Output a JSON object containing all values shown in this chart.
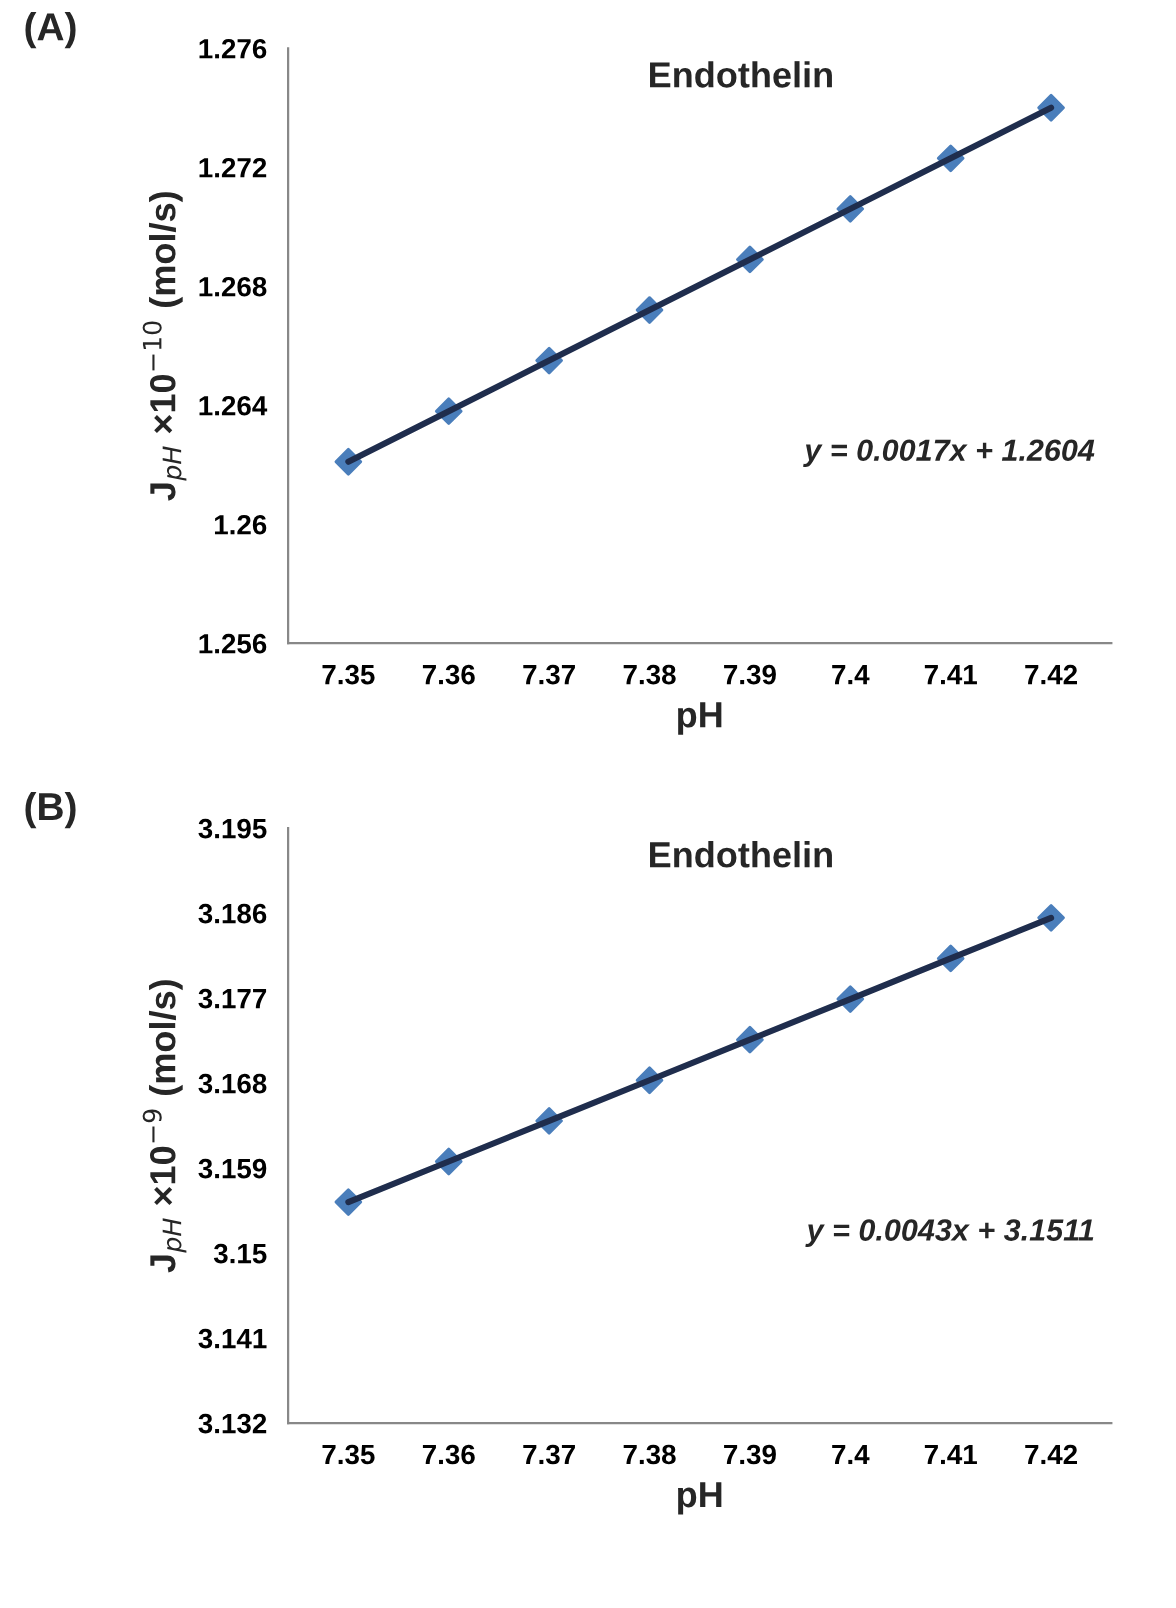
{
  "chart_data": [
    {
      "type": "line",
      "title": "(A)",
      "xlabel": "pH",
      "ylabel": "J$_{pH}$ ×10$^{−10}$ (mol/s)",
      "categories": [
        "7.35",
        "7.36",
        "7.37",
        "7.38",
        "7.39",
        "7.4",
        "7.41",
        "7.42"
      ],
      "series": [
        {
          "type": "scatter",
          "color": "#4a7ebb",
          "marker": "diamond",
          "values": [
            1.2621,
            1.2638,
            1.2655,
            1.2672,
            1.2689,
            1.2706,
            1.2723,
            1.274
          ]
        },
        {
          "color": "#1f2d4d",
          "values": [
            1.2621,
            1.2638,
            1.2655,
            1.2672,
            1.2689,
            1.2706,
            1.2723,
            1.274
          ]
        }
      ],
      "ylim": [
        1.256,
        1.276
      ],
      "yticks": [
        1.256,
        1.26,
        1.264,
        1.268,
        1.272,
        1.276
      ],
      "grid": false,
      "legend": false,
      "annotations": [
        "Endothelin",
        "y = 0.0017x + 1.2604"
      ]
    },
    {
      "type": "line",
      "title": "(B)",
      "xlabel": "pH",
      "ylabel": "J$_{pH}$ ×10$^{−9}$ (mol/s)",
      "categories": [
        "7.35",
        "7.36",
        "7.37",
        "7.38",
        "7.39",
        "7.4",
        "7.41",
        "7.42"
      ],
      "series": [
        {
          "type": "scatter",
          "color": "#4a7ebb",
          "marker": "diamond",
          "values": [
            3.1554,
            3.1597,
            3.164,
            3.1683,
            3.1726,
            3.1769,
            3.1812,
            3.1855
          ]
        },
        {
          "color": "#1f2d4d",
          "values": [
            3.1554,
            3.1597,
            3.164,
            3.1683,
            3.1726,
            3.1769,
            3.1812,
            3.1855
          ]
        }
      ],
      "ylim": [
        3.132,
        3.195
      ],
      "yticks": [
        3.132,
        3.141,
        3.15,
        3.159,
        3.168,
        3.177,
        3.186,
        3.195
      ],
      "grid": false,
      "legend": false,
      "annotations": [
        "Endothelin",
        "y = 0.0043x + 3.1511"
      ]
    }
  ]
}
